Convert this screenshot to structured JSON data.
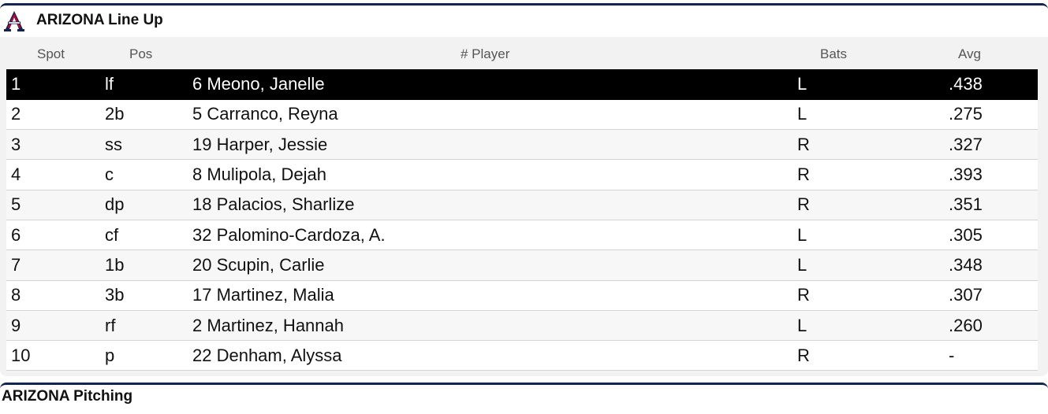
{
  "lineup_panel": {
    "title": "ARIZONA Line Up",
    "logo_icon": "arizona-a-logo-icon",
    "brand_colors": {
      "navy": "#14244e",
      "red": "#cc0033"
    },
    "columns": {
      "spot": "Spot",
      "pos": "Pos",
      "player": "# Player",
      "bats": "Bats",
      "avg": "Avg"
    },
    "rows": [
      {
        "spot": "1",
        "pos": "lf",
        "player": "6 Meono, Janelle",
        "bats": "L",
        "avg": ".438"
      },
      {
        "spot": "2",
        "pos": "2b",
        "player": "5 Carranco, Reyna",
        "bats": "L",
        "avg": ".275"
      },
      {
        "spot": "3",
        "pos": "ss",
        "player": "19 Harper, Jessie",
        "bats": "R",
        "avg": ".327"
      },
      {
        "spot": "4",
        "pos": "c",
        "player": "8 Mulipola, Dejah",
        "bats": "R",
        "avg": ".393"
      },
      {
        "spot": "5",
        "pos": "dp",
        "player": "18 Palacios, Sharlize",
        "bats": "R",
        "avg": ".351"
      },
      {
        "spot": "6",
        "pos": "cf",
        "player": "32 Palomino-Cardoza, A.",
        "bats": "L",
        "avg": ".305"
      },
      {
        "spot": "7",
        "pos": "1b",
        "player": "20 Scupin, Carlie",
        "bats": "L",
        "avg": ".348"
      },
      {
        "spot": "8",
        "pos": "3b",
        "player": "17 Martinez, Malia",
        "bats": "R",
        "avg": ".307"
      },
      {
        "spot": "9",
        "pos": "rf",
        "player": "2 Martinez, Hannah",
        "bats": "L",
        "avg": ".260"
      },
      {
        "spot": "10",
        "pos": "p",
        "player": "22 Denham, Alyssa",
        "bats": "R",
        "avg": "-"
      }
    ]
  },
  "next_panel": {
    "title": "ARIZONA Pitching"
  }
}
